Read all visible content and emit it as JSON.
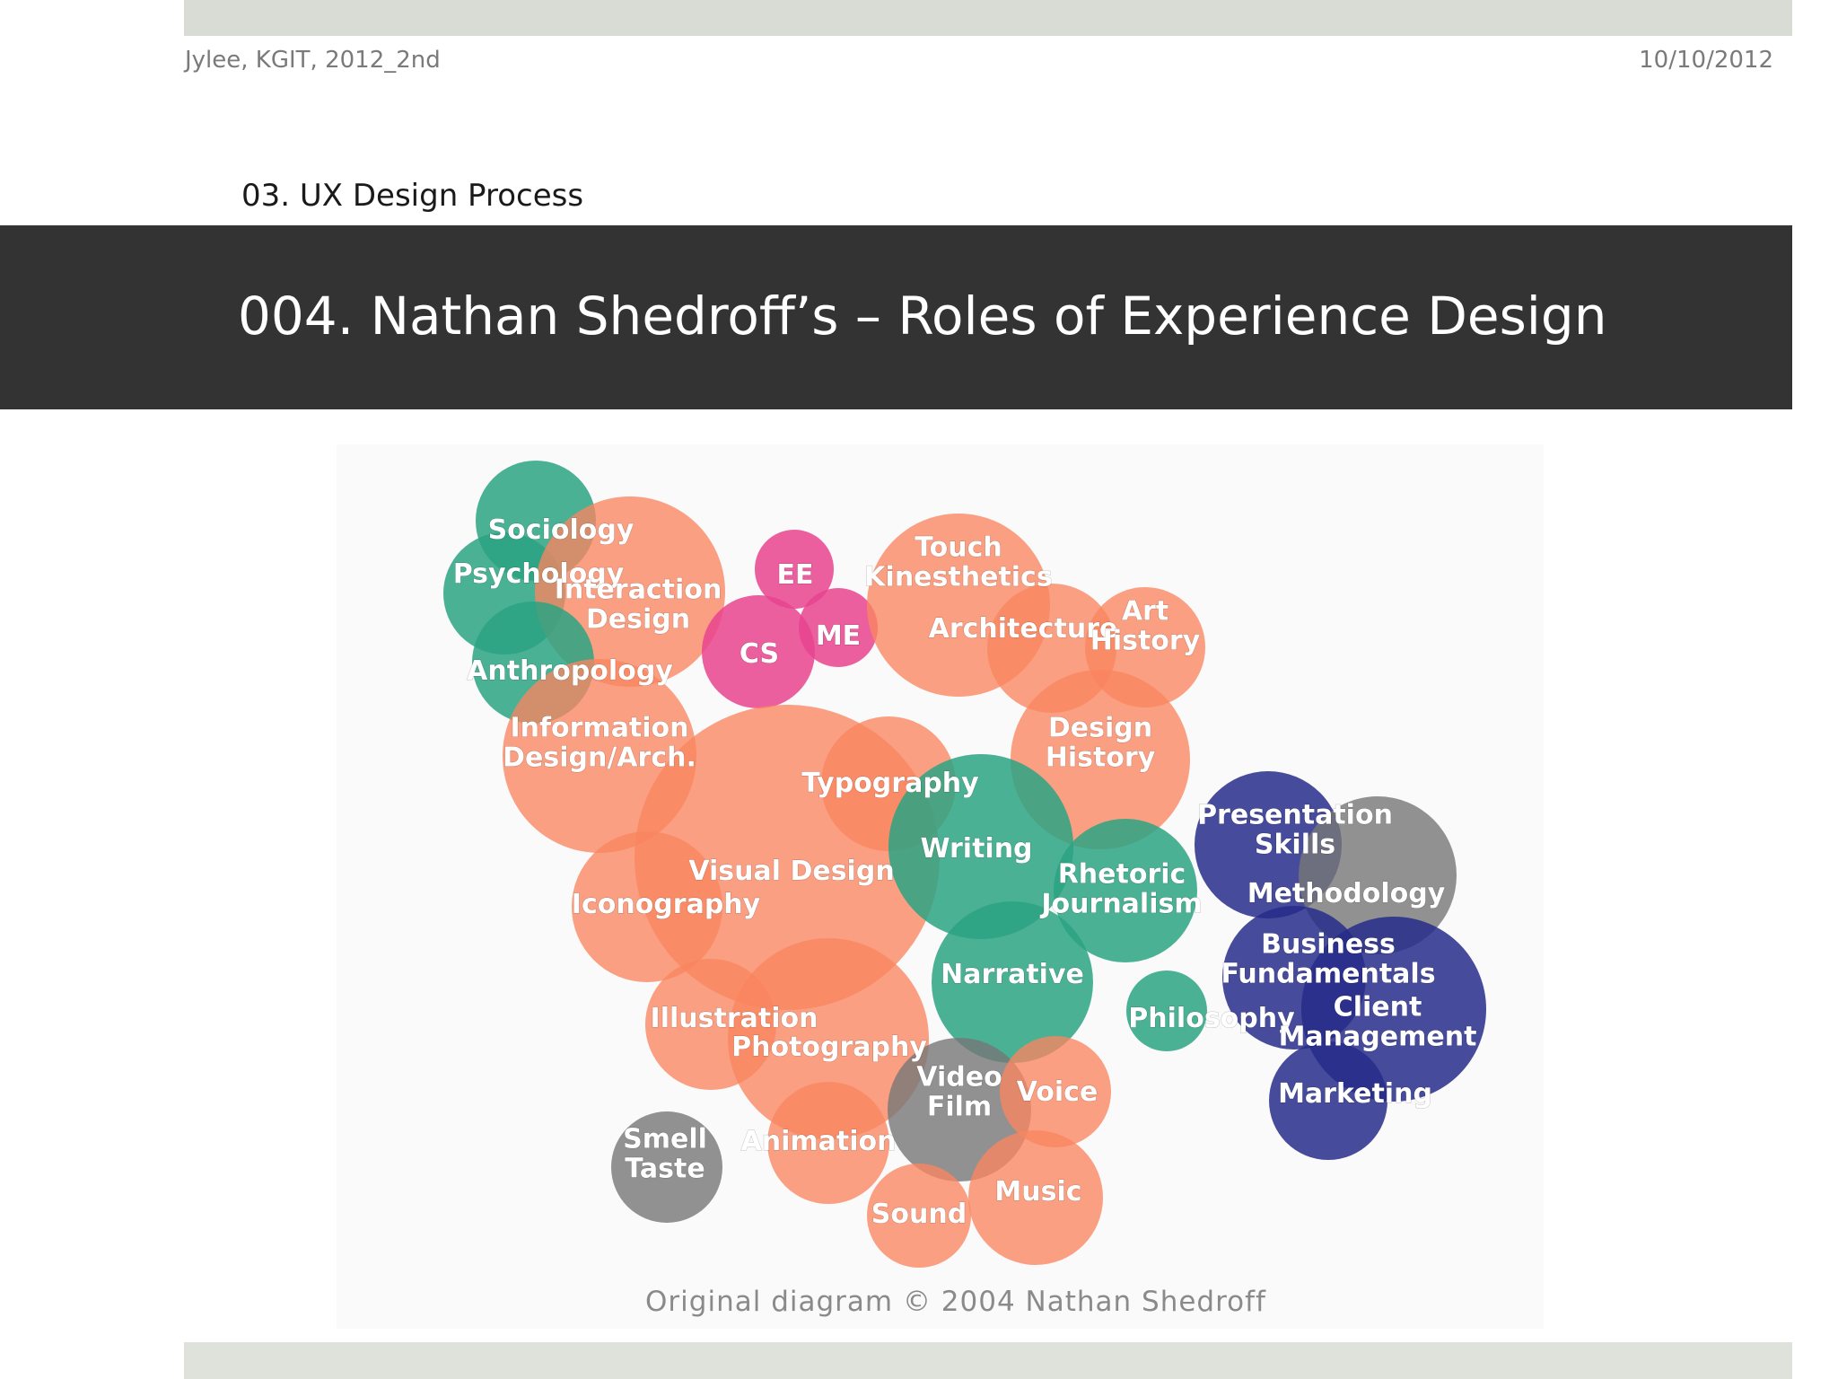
{
  "header": {
    "author": "Jylee, KGIT, 2012_2nd",
    "date": "10/10/2012"
  },
  "section_label": "03. UX Design Process",
  "slide_title": "004. Nathan Shedroff’s – Roles of Experience Design",
  "diagram": {
    "colors": {
      "orange": "#fa8560",
      "teal": "#2aa383",
      "pink": "#e8438e",
      "navy": "#262c8a",
      "gray": "#777777"
    },
    "bubbles": [
      {
        "id": "sociology",
        "lines": [
          "Sociology"
        ],
        "color": "teal"
      },
      {
        "id": "psychology",
        "lines": [
          "Psychology"
        ],
        "color": "teal"
      },
      {
        "id": "interaction-design",
        "lines": [
          "Interaction",
          "Design"
        ],
        "color": "orange"
      },
      {
        "id": "anthropology",
        "lines": [
          "Anthropology"
        ],
        "color": "teal"
      },
      {
        "id": "ee",
        "lines": [
          "EE"
        ],
        "color": "pink"
      },
      {
        "id": "cs",
        "lines": [
          "CS"
        ],
        "color": "pink"
      },
      {
        "id": "me",
        "lines": [
          "ME"
        ],
        "color": "pink"
      },
      {
        "id": "touch-kinesthetics",
        "lines": [
          "Touch",
          "Kinesthetics"
        ],
        "color": "orange"
      },
      {
        "id": "architecture",
        "lines": [
          "Architecture"
        ],
        "color": "orange"
      },
      {
        "id": "art-history",
        "lines": [
          "Art",
          "History"
        ],
        "color": "orange"
      },
      {
        "id": "information-design",
        "lines": [
          "Information",
          "Design/Arch."
        ],
        "color": "orange"
      },
      {
        "id": "design-history",
        "lines": [
          "Design",
          "History"
        ],
        "color": "orange"
      },
      {
        "id": "visual-design",
        "lines": [
          "Visual Design"
        ],
        "color": "orange"
      },
      {
        "id": "typography",
        "lines": [
          "Typography"
        ],
        "color": "orange"
      },
      {
        "id": "writing",
        "lines": [
          "Writing"
        ],
        "color": "teal"
      },
      {
        "id": "rhetoric-journalism",
        "lines": [
          "Rhetoric",
          "Journalism"
        ],
        "color": "teal"
      },
      {
        "id": "iconography",
        "lines": [
          "Iconography"
        ],
        "color": "orange"
      },
      {
        "id": "narrative",
        "lines": [
          "Narrative"
        ],
        "color": "teal"
      },
      {
        "id": "philosophy",
        "lines": [
          "Philosophy"
        ],
        "color": "teal"
      },
      {
        "id": "presentation-skills",
        "lines": [
          "Presentation",
          "Skills"
        ],
        "color": "navy"
      },
      {
        "id": "methodology",
        "lines": [
          "Methodology"
        ],
        "color": "gray"
      },
      {
        "id": "business-fundamentals",
        "lines": [
          "Business",
          "Fundamentals"
        ],
        "color": "navy"
      },
      {
        "id": "client-management",
        "lines": [
          "Client",
          "Management"
        ],
        "color": "navy"
      },
      {
        "id": "marketing",
        "lines": [
          "Marketing"
        ],
        "color": "navy"
      },
      {
        "id": "illustration",
        "lines": [
          "Illustration"
        ],
        "color": "orange"
      },
      {
        "id": "photography",
        "lines": [
          "Photography"
        ],
        "color": "orange"
      },
      {
        "id": "video-film",
        "lines": [
          "Video",
          "Film"
        ],
        "color": "gray"
      },
      {
        "id": "voice",
        "lines": [
          "Voice"
        ],
        "color": "orange"
      },
      {
        "id": "animation",
        "lines": [
          "Animation"
        ],
        "color": "orange"
      },
      {
        "id": "music",
        "lines": [
          "Music"
        ],
        "color": "orange"
      },
      {
        "id": "sound",
        "lines": [
          "Sound"
        ],
        "color": "orange"
      },
      {
        "id": "smell-taste",
        "lines": [
          "Smell",
          "Taste"
        ],
        "color": "gray"
      }
    ],
    "caption": "Original diagram © 2004 Nathan Shedroff"
  }
}
